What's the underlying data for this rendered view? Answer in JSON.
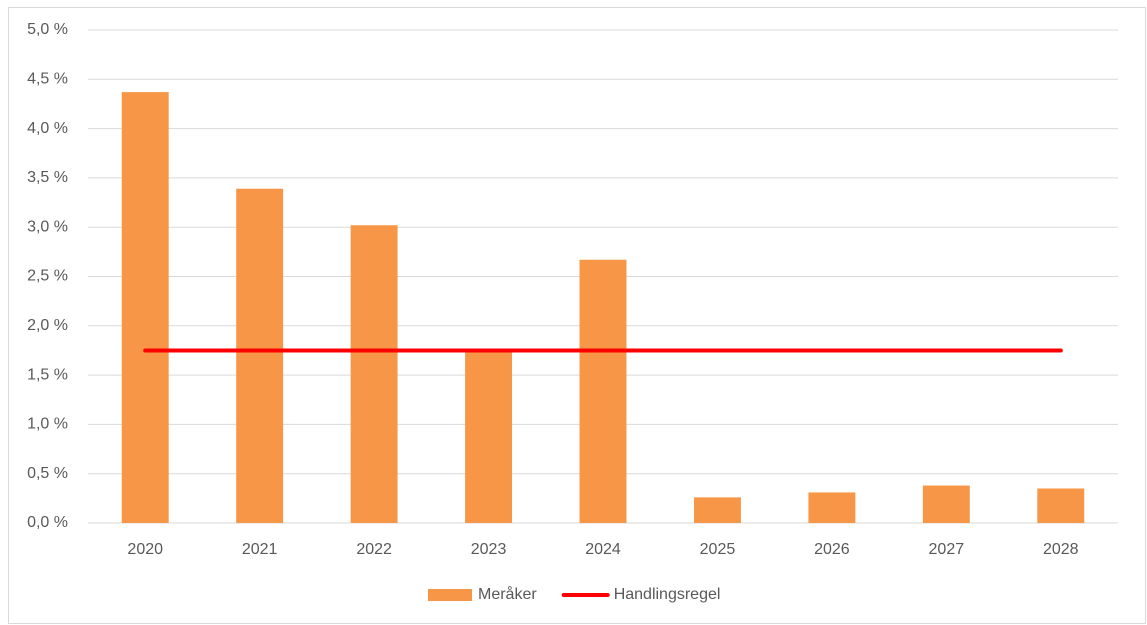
{
  "chart_data": {
    "type": "bar",
    "categories": [
      "2020",
      "2021",
      "2022",
      "2023",
      "2024",
      "2025",
      "2026",
      "2027",
      "2028"
    ],
    "series": [
      {
        "name": "Meråker",
        "type": "bar",
        "color": "#f79646",
        "values": [
          4.37,
          3.39,
          3.02,
          1.76,
          2.67,
          0.26,
          0.31,
          0.38,
          0.35
        ]
      },
      {
        "name": "Handlingsregel",
        "type": "line",
        "color": "#ff0000",
        "values": [
          1.75,
          1.75,
          1.75,
          1.75,
          1.75,
          1.75,
          1.75,
          1.75,
          1.75
        ]
      }
    ],
    "ylim": [
      0,
      5
    ],
    "yticks": [
      {
        "value": 0,
        "label": "0,0 %"
      },
      {
        "value": 0.5,
        "label": "0,5 %"
      },
      {
        "value": 1,
        "label": "1,0 %"
      },
      {
        "value": 1.5,
        "label": "1,5 %"
      },
      {
        "value": 2,
        "label": "2,0 %"
      },
      {
        "value": 2.5,
        "label": "2,5 %"
      },
      {
        "value": 3,
        "label": "3,0 %"
      },
      {
        "value": 3.5,
        "label": "3,5 %"
      },
      {
        "value": 4,
        "label": "4,0 %"
      },
      {
        "value": 4.5,
        "label": "4,5 %"
      },
      {
        "value": 5,
        "label": "5,0 %"
      }
    ],
    "grid": true,
    "legend": "bottom"
  }
}
